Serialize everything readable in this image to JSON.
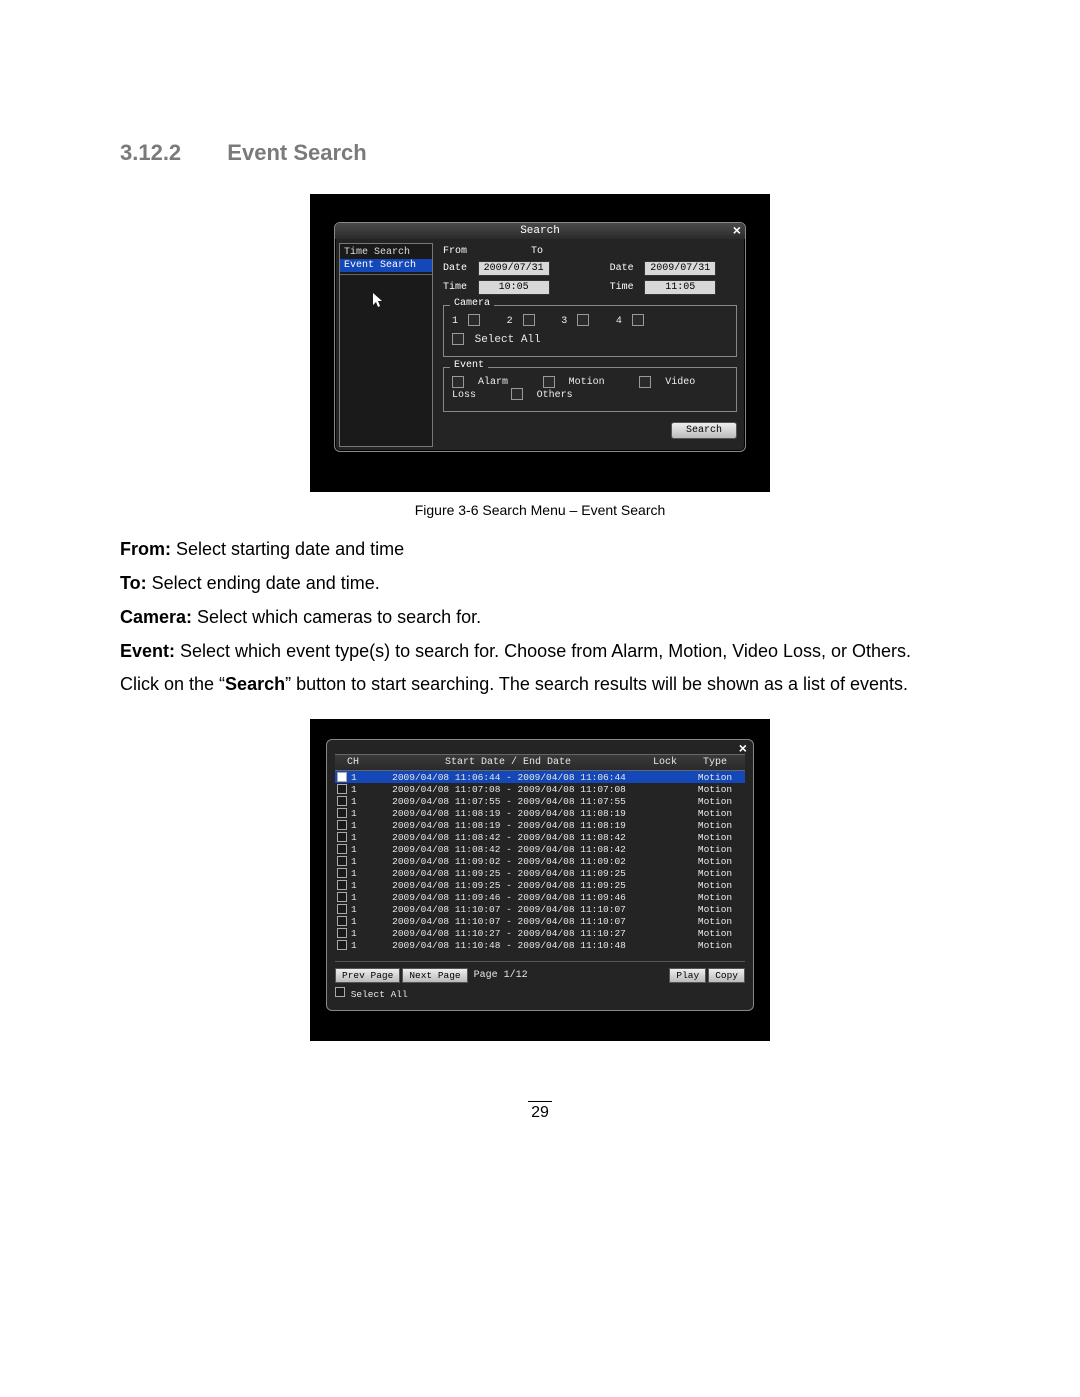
{
  "heading": {
    "number": "3.12.2",
    "title": "Event Search"
  },
  "fig1": {
    "dialog_title": "Search",
    "sidebar": {
      "items": [
        "Time Search",
        "Event Search"
      ],
      "selected_index": 1
    },
    "from": {
      "label": "From",
      "date_label": "Date",
      "date": "2009/07/31",
      "time_label": "Time",
      "time": "10:05"
    },
    "to": {
      "label": "To",
      "date_label": "Date",
      "date": "2009/07/31",
      "time_label": "Time",
      "time": "11:05"
    },
    "camera_group": {
      "title": "Camera",
      "items": [
        "1",
        "2",
        "3",
        "4"
      ],
      "select_all": "Select All"
    },
    "event_group": {
      "title": "Event",
      "items": [
        "Alarm",
        "Motion",
        "Video Loss",
        "Others"
      ]
    },
    "search_button": "Search",
    "caption": "Figure 3-6 Search Menu – Event Search",
    "colors": {
      "bg": "#000000",
      "dlg": "#242424",
      "border": "#888888",
      "sel": "#1447b8",
      "valbox": "#d8d8d8"
    }
  },
  "body": {
    "from_desc": "Select starting date and time",
    "to_desc": "Select ending date and time.",
    "camera_desc": "Select which cameras to search for.",
    "event_desc": "Select which event type(s) to search for. Choose from Alarm, Motion, Video Loss, or Others.",
    "click_line_prefix": "Click on the “",
    "click_line_bold": "Search",
    "click_line_suffix": "” button to start searching. The search results will be shown as a list of events."
  },
  "fig2": {
    "headers": {
      "ch": "CH",
      "date": "Start Date / End Date",
      "lock": "Lock",
      "type": "Type"
    },
    "rows": [
      {
        "ch": "1",
        "date": "2009/04/08 11:06:44 - 2009/04/08 11:06:44",
        "type": "Motion",
        "selected": true
      },
      {
        "ch": "1",
        "date": "2009/04/08 11:07:08 - 2009/04/08 11:07:08",
        "type": "Motion"
      },
      {
        "ch": "1",
        "date": "2009/04/08 11:07:55 - 2009/04/08 11:07:55",
        "type": "Motion"
      },
      {
        "ch": "1",
        "date": "2009/04/08 11:08:19 - 2009/04/08 11:08:19",
        "type": "Motion"
      },
      {
        "ch": "1",
        "date": "2009/04/08 11:08:19 - 2009/04/08 11:08:19",
        "type": "Motion"
      },
      {
        "ch": "1",
        "date": "2009/04/08 11:08:42 - 2009/04/08 11:08:42",
        "type": "Motion"
      },
      {
        "ch": "1",
        "date": "2009/04/08 11:08:42 - 2009/04/08 11:08:42",
        "type": "Motion"
      },
      {
        "ch": "1",
        "date": "2009/04/08 11:09:02 - 2009/04/08 11:09:02",
        "type": "Motion"
      },
      {
        "ch": "1",
        "date": "2009/04/08 11:09:25 - 2009/04/08 11:09:25",
        "type": "Motion"
      },
      {
        "ch": "1",
        "date": "2009/04/08 11:09:25 - 2009/04/08 11:09:25",
        "type": "Motion"
      },
      {
        "ch": "1",
        "date": "2009/04/08 11:09:46 - 2009/04/08 11:09:46",
        "type": "Motion"
      },
      {
        "ch": "1",
        "date": "2009/04/08 11:10:07 - 2009/04/08 11:10:07",
        "type": "Motion"
      },
      {
        "ch": "1",
        "date": "2009/04/08 11:10:07 - 2009/04/08 11:10:07",
        "type": "Motion"
      },
      {
        "ch": "1",
        "date": "2009/04/08 11:10:27 - 2009/04/08 11:10:27",
        "type": "Motion"
      },
      {
        "ch": "1",
        "date": "2009/04/08 11:10:48 - 2009/04/08 11:10:48",
        "type": "Motion"
      }
    ],
    "pager": {
      "prev": "Prev Page",
      "next": "Next Page",
      "pos": "Page 1/12",
      "play": "Play",
      "copy": "Copy"
    },
    "select_all": "Select All"
  },
  "page_number": "29"
}
